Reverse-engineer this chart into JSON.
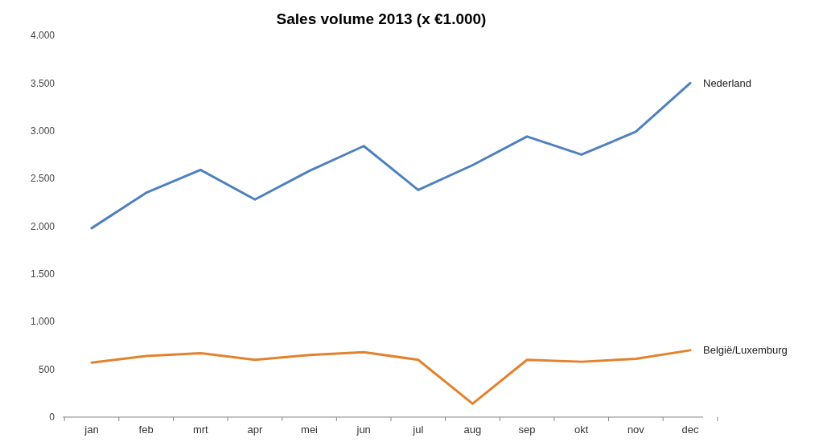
{
  "chart_data": {
    "type": "line",
    "title": "Sales volume 2013 (x €1.000)",
    "categories": [
      "jan",
      "feb",
      "mrt",
      "apr",
      "mei",
      "jun",
      "jul",
      "aug",
      "sep",
      "okt",
      "nov",
      "dec"
    ],
    "series": [
      {
        "name": "Nederland",
        "color": "#4f81bd",
        "values": [
          1980,
          2350,
          2590,
          2280,
          2580,
          2840,
          2380,
          2640,
          2940,
          2750,
          2990,
          3500
        ]
      },
      {
        "name": "België/Luxemburg",
        "color": "#e3822d",
        "values": [
          570,
          640,
          670,
          600,
          650,
          680,
          600,
          140,
          600,
          580,
          610,
          700
        ]
      }
    ],
    "ylim": [
      0,
      4000
    ],
    "yticks": [
      {
        "value": 0,
        "label": "0"
      },
      {
        "value": 500,
        "label": "500"
      },
      {
        "value": 1000,
        "label": "1.000"
      },
      {
        "value": 1500,
        "label": "1.500"
      },
      {
        "value": 2000,
        "label": "2.000"
      },
      {
        "value": 2500,
        "label": "2.500"
      },
      {
        "value": 3000,
        "label": "3.000"
      },
      {
        "value": 3500,
        "label": "3.500"
      },
      {
        "value": 4000,
        "label": "4.000"
      }
    ],
    "grid": false,
    "legend": false,
    "marker": "none",
    "line_style": "solid"
  }
}
